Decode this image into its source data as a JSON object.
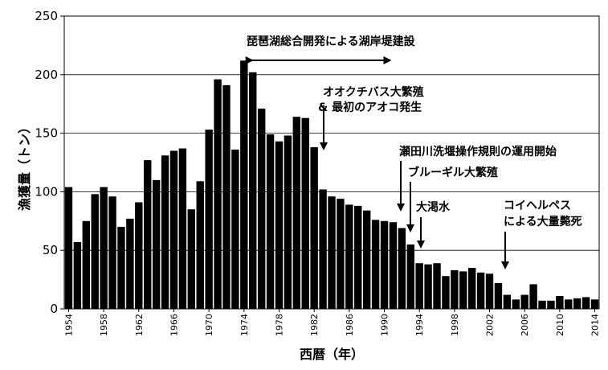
{
  "chart_data": {
    "type": "bar",
    "xlabel": "西暦（年）",
    "ylabel": "漁獲量（トン）",
    "ylim": [
      0,
      250
    ],
    "yticks": [
      0,
      50,
      100,
      150,
      200,
      250
    ],
    "grid": "horizontal",
    "xtick_labels": [
      "1954",
      "1958",
      "1962",
      "1966",
      "1970",
      "1974",
      "1978",
      "1982",
      "1986",
      "1990",
      "1994",
      "1998",
      "2002",
      "2006",
      "2010",
      "2014"
    ],
    "categories": [
      1954,
      1955,
      1956,
      1957,
      1958,
      1959,
      1960,
      1961,
      1962,
      1963,
      1964,
      1965,
      1966,
      1967,
      1968,
      1969,
      1970,
      1971,
      1972,
      1973,
      1974,
      1975,
      1976,
      1977,
      1978,
      1979,
      1980,
      1981,
      1982,
      1983,
      1984,
      1985,
      1986,
      1987,
      1988,
      1989,
      1990,
      1991,
      1992,
      1993,
      1994,
      1995,
      1996,
      1997,
      1998,
      1999,
      2000,
      2001,
      2002,
      2003,
      2004,
      2005,
      2006,
      2007,
      2008,
      2009,
      2010,
      2011,
      2012,
      2013,
      2014
    ],
    "values": [
      104,
      57,
      75,
      98,
      104,
      96,
      70,
      77,
      91,
      127,
      110,
      131,
      135,
      137,
      85,
      109,
      153,
      196,
      191,
      136,
      212,
      202,
      171,
      149,
      143,
      148,
      164,
      163,
      138,
      102,
      96,
      94,
      89,
      88,
      84,
      76,
      75,
      74,
      69,
      55,
      39,
      38,
      39,
      28,
      33,
      32,
      35,
      31,
      30,
      22,
      12,
      8,
      12,
      21,
      7,
      7,
      11,
      8,
      9,
      10,
      8
    ],
    "annotations": [
      {
        "text": "琵琶湖総合開発による湖岸堤建設",
        "span": [
          1975,
          1990
        ],
        "type": "double-arrow"
      },
      {
        "text": "オオクチバス大繁殖",
        "text2": "& 最初のアオコ発生",
        "year": 1983,
        "type": "arrow"
      },
      {
        "text": "瀬田川洗堰操作規則の運用開始",
        "year": 1992,
        "type": "arrow"
      },
      {
        "text": "ブルーギル大繁殖",
        "year": 1993,
        "type": "arrow"
      },
      {
        "text": "大渇水",
        "year": 1994,
        "type": "arrow"
      },
      {
        "text": "コイヘルペス",
        "text2": "による大量斃死",
        "year": 2004,
        "type": "arrow"
      }
    ]
  }
}
